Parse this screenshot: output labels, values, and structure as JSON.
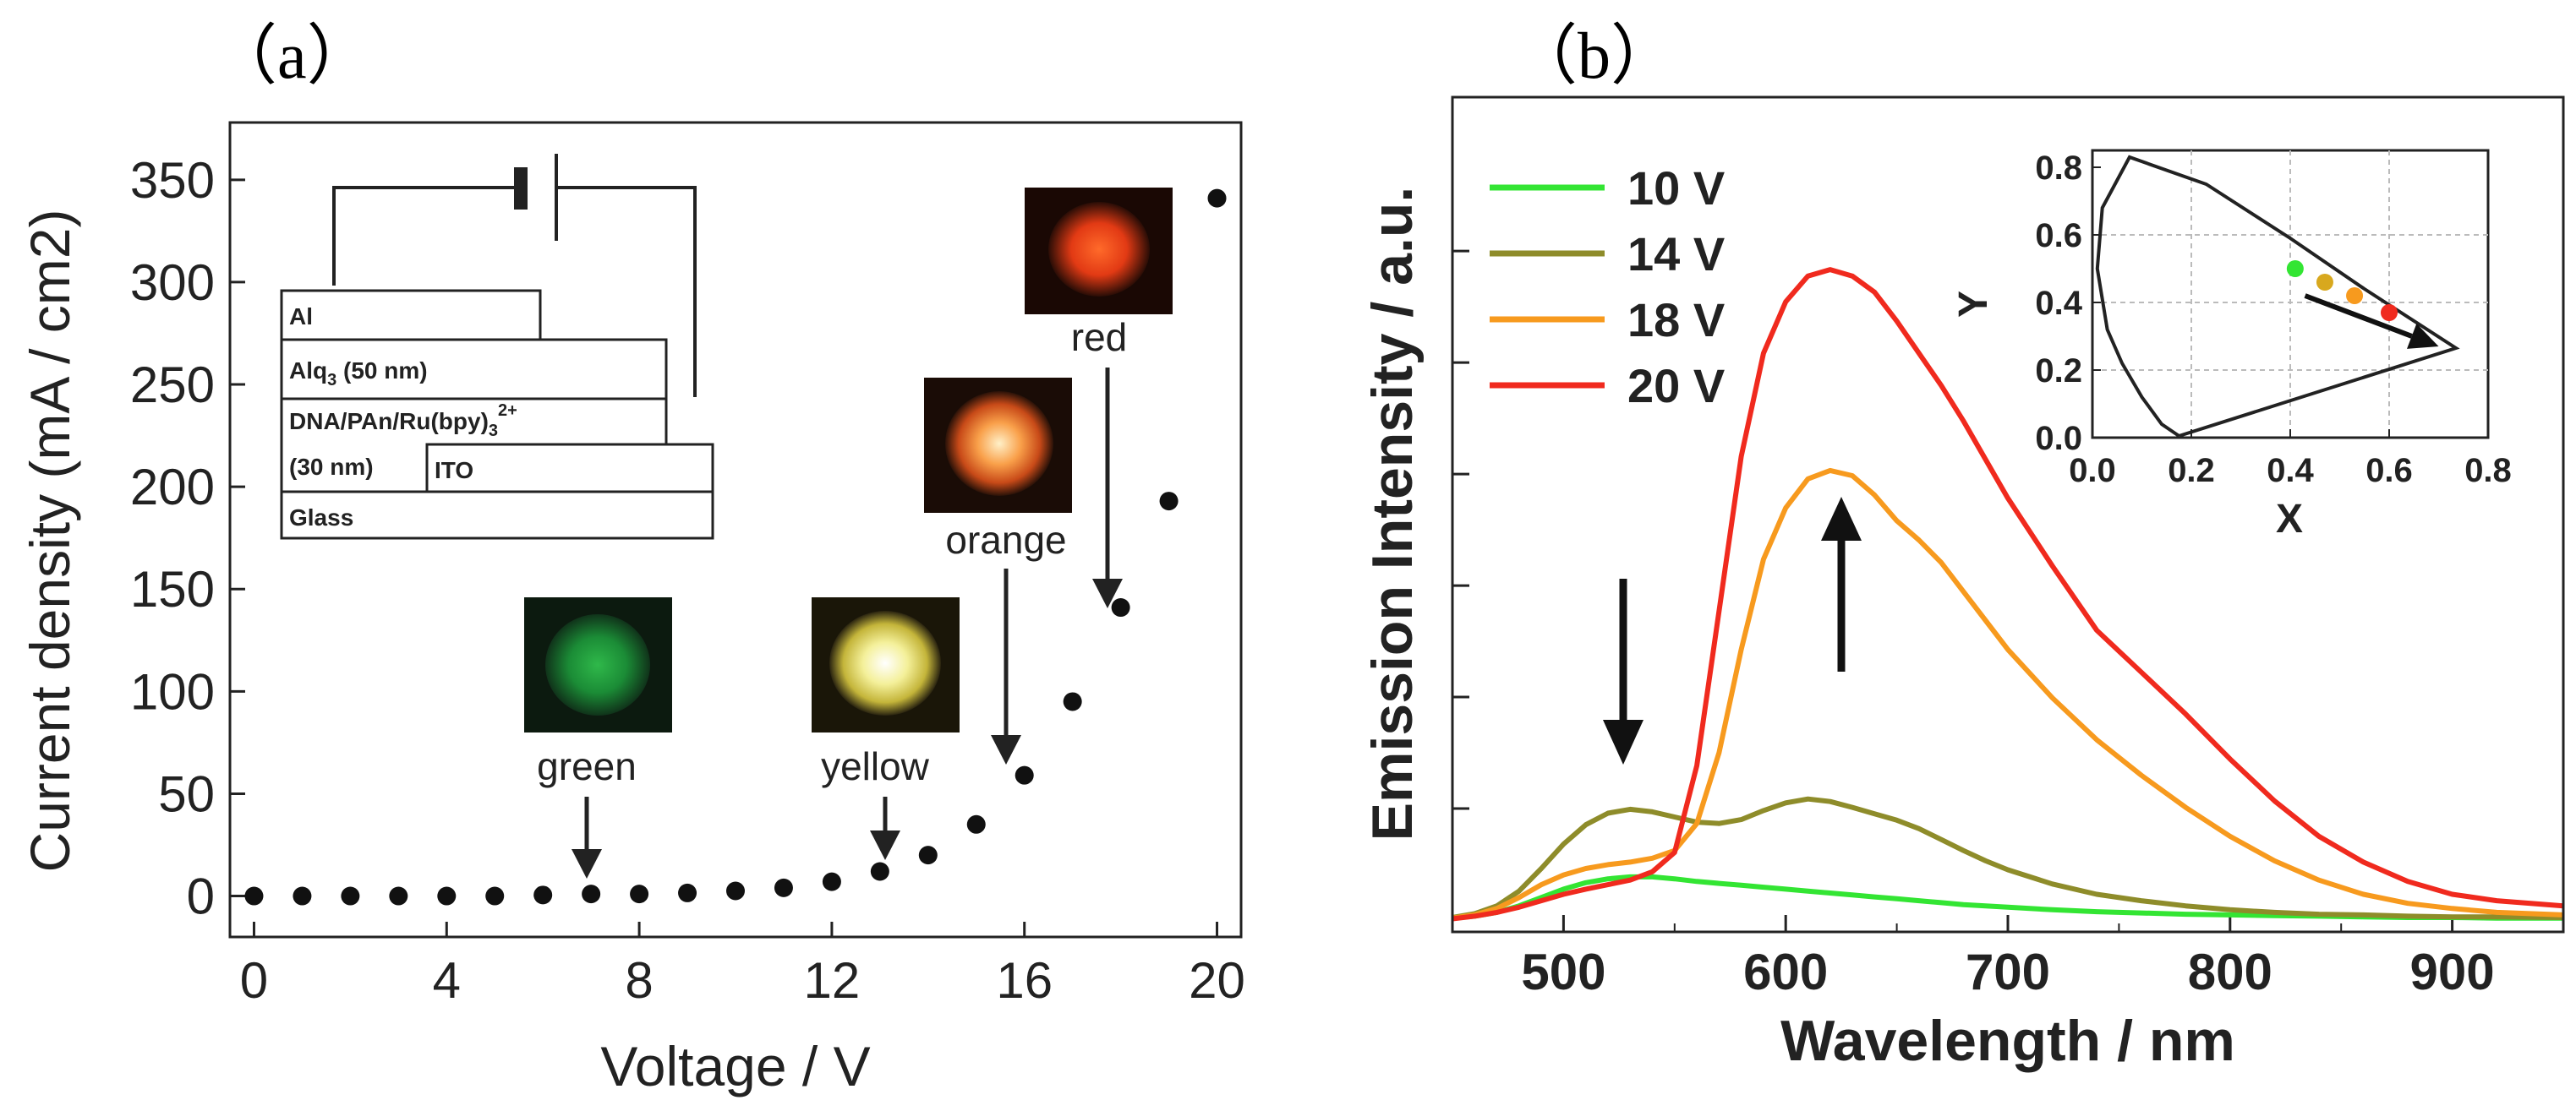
{
  "chart_data": [
    {
      "type": "scatter",
      "panel_label": "（a）",
      "title": "",
      "xlabel": "Voltage / V",
      "ylabel": "Current density (mA / cm2)",
      "ylabel_sup": "2",
      "xlim": [
        -0.5,
        20.5
      ],
      "ylim": [
        -20,
        378
      ],
      "xticks": [
        0,
        4,
        8,
        12,
        16,
        20
      ],
      "yticks": [
        0,
        50,
        100,
        150,
        200,
        250,
        300,
        350
      ],
      "x": [
        0,
        1,
        2,
        3,
        4,
        5,
        6,
        7,
        8,
        9,
        10,
        11,
        12,
        13,
        14,
        15,
        16,
        17,
        18,
        19,
        20
      ],
      "y": [
        0,
        0,
        0,
        0,
        0,
        0,
        0.5,
        1,
        1,
        1.5,
        2.5,
        4,
        7,
        12,
        20,
        35,
        59,
        95,
        141,
        193,
        341
      ],
      "device_stack": {
        "layers": [
          "Al",
          "Alq3 (50 nm)",
          "DNA/PAn/Ru(bpy)3 2+ (30 nm)",
          "ITO",
          "Glass"
        ],
        "al": "Al",
        "alq_main": "Alq",
        "alq_sub": "3",
        "alq_rest": " (50 nm)",
        "dna_main": "DNA/PAn/Ru(bpy)",
        "dna_sub": "3",
        "dna_sup": "2+",
        "dna_line2": "(30 nm)",
        "ito": "ITO",
        "glass": "Glass"
      },
      "emission_photos": [
        {
          "label": "green",
          "voltage": 7,
          "color": "#1b9a3a"
        },
        {
          "label": "yellow",
          "voltage": 13.2,
          "color": "#f2ef9a"
        },
        {
          "label": "orange",
          "voltage": 15.8,
          "color": "#f6a04a"
        },
        {
          "label": "red",
          "voltage": 17.8,
          "color": "#f04a1c"
        }
      ]
    },
    {
      "type": "line",
      "panel_label": "（b）",
      "title": "",
      "xlabel": "Wavelength / nm",
      "ylabel": "Emission Intensity / a.u.",
      "xlim": [
        450,
        950
      ],
      "ylim": [
        0,
        1
      ],
      "xticks": [
        500,
        600,
        700,
        800,
        900
      ],
      "yticks_unlabeled": 6,
      "x": [
        450,
        460,
        470,
        480,
        490,
        500,
        510,
        520,
        530,
        540,
        550,
        560,
        570,
        580,
        590,
        600,
        610,
        620,
        630,
        640,
        650,
        660,
        670,
        680,
        690,
        700,
        720,
        740,
        760,
        780,
        800,
        820,
        840,
        860,
        880,
        900,
        920,
        950
      ],
      "series": [
        {
          "name": "10 V",
          "color": "#33e533",
          "values": [
            0.003,
            0.006,
            0.012,
            0.022,
            0.035,
            0.048,
            0.058,
            0.064,
            0.067,
            0.067,
            0.064,
            0.06,
            0.057,
            0.054,
            0.051,
            0.048,
            0.045,
            0.042,
            0.039,
            0.036,
            0.033,
            0.03,
            0.027,
            0.024,
            0.022,
            0.02,
            0.016,
            0.013,
            0.011,
            0.009,
            0.008,
            0.007,
            0.006,
            0.005,
            0.004,
            0.004,
            0.003,
            0.003
          ]
        },
        {
          "name": "14 V",
          "color": "#8e8c2a",
          "values": [
            0.004,
            0.01,
            0.022,
            0.045,
            0.08,
            0.118,
            0.148,
            0.166,
            0.172,
            0.168,
            0.16,
            0.152,
            0.15,
            0.156,
            0.17,
            0.182,
            0.188,
            0.184,
            0.175,
            0.165,
            0.155,
            0.142,
            0.125,
            0.108,
            0.092,
            0.078,
            0.056,
            0.04,
            0.03,
            0.022,
            0.016,
            0.012,
            0.009,
            0.008,
            0.006,
            0.005,
            0.005,
            0.004
          ]
        },
        {
          "name": "18 V",
          "color": "#f79a1e",
          "values": [
            0.003,
            0.008,
            0.018,
            0.035,
            0.055,
            0.07,
            0.08,
            0.086,
            0.09,
            0.096,
            0.108,
            0.15,
            0.26,
            0.42,
            0.56,
            0.64,
            0.685,
            0.698,
            0.69,
            0.66,
            0.62,
            0.59,
            0.555,
            0.51,
            0.465,
            0.42,
            0.345,
            0.28,
            0.225,
            0.175,
            0.13,
            0.092,
            0.062,
            0.04,
            0.026,
            0.018,
            0.012,
            0.008
          ]
        },
        {
          "name": "20 V",
          "color": "#f02a1e",
          "values": [
            0.002,
            0.006,
            0.012,
            0.02,
            0.03,
            0.04,
            0.048,
            0.055,
            0.062,
            0.075,
            0.105,
            0.24,
            0.48,
            0.72,
            0.88,
            0.96,
            1.0,
            1.01,
            1.0,
            0.975,
            0.93,
            0.88,
            0.83,
            0.775,
            0.715,
            0.655,
            0.55,
            0.45,
            0.385,
            0.32,
            0.25,
            0.185,
            0.13,
            0.09,
            0.06,
            0.04,
            0.03,
            0.022
          ]
        }
      ],
      "arrows": [
        {
          "direction": "down",
          "at_wavelength": 530
        },
        {
          "direction": "up",
          "at_wavelength": 625
        }
      ],
      "inset": {
        "type": "scatter",
        "xlabel": "X",
        "ylabel": "Y",
        "xlim": [
          0.0,
          0.8
        ],
        "ylim": [
          0.0,
          0.85
        ],
        "xticks": [
          "0.0",
          "0.2",
          "0.4",
          "0.6",
          "0.8"
        ],
        "yticks": [
          "0.0",
          "0.2",
          "0.4",
          "0.6",
          "0.8"
        ],
        "xtick_values": [
          0.0,
          0.2,
          0.4,
          0.6,
          0.8
        ],
        "ytick_values": [
          0.0,
          0.2,
          0.4,
          0.6,
          0.8
        ],
        "points": [
          {
            "x": 0.41,
            "y": 0.5,
            "color": "#33e533"
          },
          {
            "x": 0.47,
            "y": 0.46,
            "color": "#d8a81e"
          },
          {
            "x": 0.53,
            "y": 0.42,
            "color": "#f79a1e"
          },
          {
            "x": 0.6,
            "y": 0.37,
            "color": "#f02a1e"
          }
        ],
        "locus": [
          [
            0.175,
            0.005
          ],
          [
            0.16,
            0.02
          ],
          [
            0.14,
            0.04
          ],
          [
            0.1,
            0.12
          ],
          [
            0.06,
            0.22
          ],
          [
            0.03,
            0.32
          ],
          [
            0.01,
            0.5
          ],
          [
            0.02,
            0.68
          ],
          [
            0.075,
            0.83
          ],
          [
            0.23,
            0.75
          ],
          [
            0.4,
            0.59
          ],
          [
            0.55,
            0.44
          ],
          [
            0.735,
            0.265
          ],
          [
            0.175,
            0.005
          ]
        ],
        "arrow": {
          "from": [
            0.43,
            0.42
          ],
          "to": [
            0.7,
            0.27
          ]
        }
      }
    }
  ]
}
